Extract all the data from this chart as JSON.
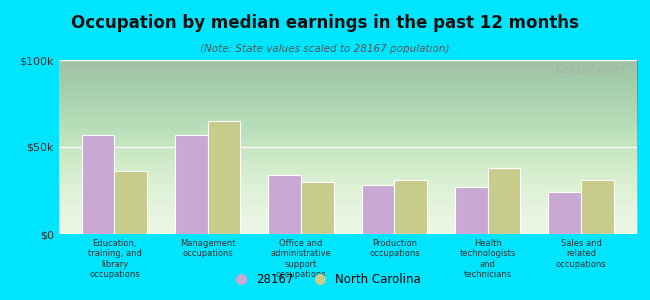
{
  "title": "Occupation by median earnings in the past 12 months",
  "subtitle": "(Note: State values scaled to 28167 population)",
  "categories": [
    "Education,\ntraining, and\nlibrary\noccupations",
    "Management\noccupations",
    "Office and\nadministrative\nsupport\noccupations",
    "Production\noccupations",
    "Health\ntechnologists\nand\ntechnicians",
    "Sales and\nrelated\noccupations"
  ],
  "values_28167": [
    57000,
    57000,
    34000,
    28000,
    27000,
    24000
  ],
  "values_nc": [
    36000,
    65000,
    30000,
    31000,
    38000,
    31000
  ],
  "color_28167": "#c9a8d4",
  "color_nc": "#c8cc8a",
  "bar_edge_color": "#ffffff",
  "plot_bg": "#e8f5e0",
  "outer_bg": "#00e5ff",
  "ylim": [
    0,
    100000
  ],
  "yticks": [
    0,
    50000,
    100000
  ],
  "ytick_labels": [
    "$0",
    "$50k",
    "$100k"
  ],
  "legend_labels": [
    "28167",
    "North Carolina"
  ],
  "watermark": "City-Data.com",
  "title_color": "#111111",
  "subtitle_color": "#555555",
  "tick_label_color": "#333333"
}
